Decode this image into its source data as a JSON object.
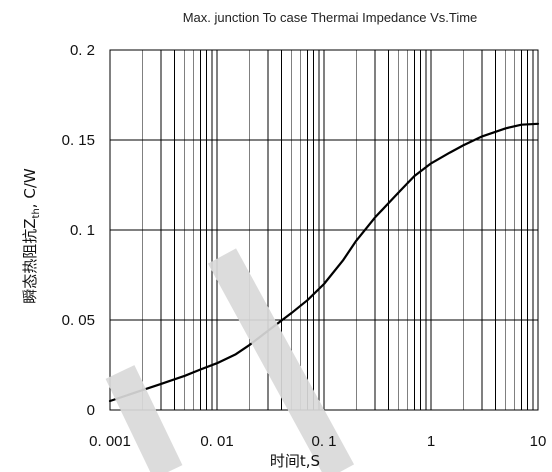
{
  "chart_data": {
    "type": "line",
    "title": "Max. junction To case Thermai Impedance Vs.Time",
    "xlabel": "时间t,S",
    "ylabel": "瞬态热阻抗Z",
    "ylabel_subscript": "th",
    "ylabel_unit": ", C/W",
    "x_scale": "log",
    "xlim": [
      0.001,
      10
    ],
    "ylim": [
      0,
      0.2
    ],
    "grid": true,
    "x_tick_labels": [
      {
        "value": 0.001,
        "label": "0. 001"
      },
      {
        "value": 0.01,
        "label": "0. 01"
      },
      {
        "value": 0.1,
        "label": "0. 1"
      },
      {
        "value": 1,
        "label": "1"
      },
      {
        "value": 10,
        "label": "10"
      }
    ],
    "y_tick_labels": [
      {
        "value": 0,
        "label": "0"
      },
      {
        "value": 0.05,
        "label": "0. 05"
      },
      {
        "value": 0.1,
        "label": "0. 1"
      },
      {
        "value": 0.15,
        "label": "0. 15"
      },
      {
        "value": 0.2,
        "label": "0. 2"
      }
    ],
    "series": [
      {
        "color": "#000000",
        "points": [
          [
            0.001,
            0.005
          ],
          [
            0.0015,
            0.0085
          ],
          [
            0.002,
            0.011
          ],
          [
            0.003,
            0.0145
          ],
          [
            0.005,
            0.019
          ],
          [
            0.007,
            0.0225
          ],
          [
            0.01,
            0.026
          ],
          [
            0.015,
            0.031
          ],
          [
            0.02,
            0.036
          ],
          [
            0.03,
            0.044
          ],
          [
            0.05,
            0.054
          ],
          [
            0.07,
            0.061
          ],
          [
            0.1,
            0.07
          ],
          [
            0.15,
            0.083
          ],
          [
            0.2,
            0.094
          ],
          [
            0.3,
            0.107
          ],
          [
            0.5,
            0.121
          ],
          [
            0.7,
            0.13
          ],
          [
            1,
            0.137
          ],
          [
            1.5,
            0.143
          ],
          [
            2,
            0.147
          ],
          [
            3,
            0.152
          ],
          [
            5,
            0.1565
          ],
          [
            7,
            0.1585
          ],
          [
            10,
            0.159
          ]
        ]
      }
    ]
  },
  "watermark_color": "#d9d9d9"
}
